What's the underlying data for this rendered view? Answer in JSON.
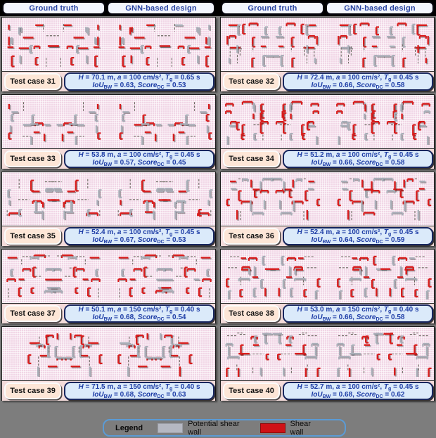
{
  "headers": {
    "ground_truth": "Ground truth",
    "gnn": "GNN-based design"
  },
  "legend": {
    "title": "Legend",
    "items": [
      {
        "name": "potential-shear-wall",
        "label": "Potential shear wall",
        "color": "#b5b8c2"
      },
      {
        "name": "shear-wall",
        "label": "Shear wall",
        "color": "#cf1216"
      }
    ]
  },
  "colors": {
    "page_background": "#7d7d7d",
    "header_text": "#2742a0",
    "panel_pink": "#f1d6e6",
    "caption_pink": "#f3dbda",
    "case_label_fill": "#fde6d7",
    "info_box_fill": "#dbeafa",
    "info_text": "#1e3da6",
    "shear_wall_red": "#d81d1d",
    "potential_wall_gray": "#a9aeb8",
    "legend_border_blue": "#5b9bd5"
  },
  "caption_format": {
    "line1": [
      [
        "i",
        "H"
      ],
      [
        "n",
        " = {H} m, "
      ],
      [
        "i",
        "a"
      ],
      [
        "n",
        " = {a} cm/s², "
      ],
      [
        "i",
        "T"
      ],
      [
        "sub",
        "g"
      ],
      [
        "n",
        " = {Tg} s"
      ]
    ],
    "line2": [
      [
        "i",
        "IoU"
      ],
      [
        "sub",
        "BW"
      ],
      [
        "n",
        " = {IoU}, "
      ],
      [
        "i",
        "Score"
      ],
      [
        "sub",
        "DC"
      ],
      [
        "n",
        " = {Score}"
      ]
    ]
  },
  "test_cases": [
    {
      "label": "Test case 31",
      "H": "70.1",
      "a": "100",
      "Tg": "0.65",
      "IoU": "0.63",
      "Score": "0.53"
    },
    {
      "label": "Test case 32",
      "H": "72.4",
      "a": "100",
      "Tg": "0.45",
      "IoU": "0.66",
      "Score": "0.58"
    },
    {
      "label": "Test case 33",
      "H": "53.8",
      "a": "100",
      "Tg": "0.45",
      "IoU": "0.57",
      "Score": "0.45"
    },
    {
      "label": "Test case 34",
      "H": "51.2",
      "a": "100",
      "Tg": "0.45",
      "IoU": "0.66",
      "Score": "0.58"
    },
    {
      "label": "Test case 35",
      "H": "52.4",
      "a": "100",
      "Tg": "0.45",
      "IoU": "0.67",
      "Score": "0.53"
    },
    {
      "label": "Test case 36",
      "H": "52.4",
      "a": "100",
      "Tg": "0.45",
      "IoU": "0.64",
      "Score": "0.59"
    },
    {
      "label": "Test case 37",
      "H": "50.1",
      "a": "150",
      "Tg": "0.40",
      "IoU": "0.68",
      "Score": "0.54"
    },
    {
      "label": "Test case 38",
      "H": "53.0",
      "a": "150",
      "Tg": "0.40",
      "IoU": "0.66",
      "Score": "0.58"
    },
    {
      "label": "Test case 39",
      "H": "71.5",
      "a": "150",
      "Tg": "0.40",
      "IoU": "0.68",
      "Score": "0.63"
    },
    {
      "label": "Test case 40",
      "H": "52.7",
      "a": "100",
      "Tg": "0.45",
      "IoU": "0.68",
      "Score": "0.62"
    }
  ]
}
